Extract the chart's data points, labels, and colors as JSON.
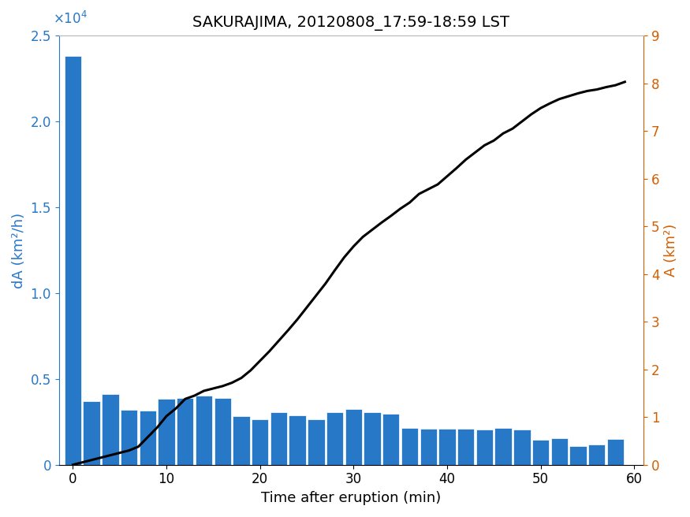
{
  "title": "SAKURAJIMA, 20120808_17:59-18:59 LST",
  "xlabel": "Time after eruption (min)",
  "ylabel_left": "dA (km²/h)",
  "ylabel_right": "A (km²)",
  "bar_color": "#2878c8",
  "line_color": "#000000",
  "left_axis_color": "#2878c8",
  "right_axis_color": "#d45f00",
  "xlim": [
    -1.5,
    61
  ],
  "ylim_left": [
    0,
    25000
  ],
  "ylim_right": [
    0,
    9
  ],
  "bar_centers": [
    0,
    2,
    4,
    6,
    8,
    10,
    12,
    14,
    16,
    18,
    20,
    22,
    24,
    26,
    28,
    30,
    32,
    34,
    36,
    38,
    40,
    42,
    44,
    46,
    48,
    50,
    52,
    54,
    56,
    58
  ],
  "bar_heights": [
    23800,
    3700,
    4100,
    3200,
    3150,
    3850,
    3900,
    4050,
    3900,
    2850,
    2650,
    3050,
    2900,
    2650,
    3050,
    3250,
    3050,
    2950,
    2150,
    2100,
    2100,
    2100,
    2050,
    2150,
    2050,
    1450,
    1550,
    1100,
    1200,
    1500
  ],
  "bar_width": 1.8,
  "line_x": [
    0,
    1,
    2,
    3,
    4,
    5,
    6,
    7,
    8,
    9,
    10,
    11,
    12,
    13,
    14,
    15,
    16,
    17,
    18,
    19,
    20,
    21,
    22,
    23,
    24,
    25,
    26,
    27,
    28,
    29,
    30,
    31,
    32,
    33,
    34,
    35,
    36,
    37,
    38,
    39,
    40,
    41,
    42,
    43,
    44,
    45,
    46,
    47,
    48,
    49,
    50,
    51,
    52,
    53,
    54,
    55,
    56,
    57,
    58,
    59
  ],
  "line_y": [
    0.0,
    0.05,
    0.1,
    0.15,
    0.2,
    0.25,
    0.3,
    0.38,
    0.58,
    0.78,
    1.02,
    1.18,
    1.38,
    1.45,
    1.55,
    1.6,
    1.65,
    1.72,
    1.82,
    1.98,
    2.18,
    2.38,
    2.6,
    2.82,
    3.05,
    3.3,
    3.55,
    3.8,
    4.08,
    4.35,
    4.58,
    4.78,
    4.93,
    5.08,
    5.22,
    5.37,
    5.5,
    5.68,
    5.78,
    5.88,
    6.05,
    6.22,
    6.4,
    6.55,
    6.7,
    6.8,
    6.95,
    7.05,
    7.2,
    7.35,
    7.48,
    7.58,
    7.67,
    7.73,
    7.79,
    7.84,
    7.87,
    7.92,
    7.96,
    8.03
  ],
  "xticks": [
    0,
    10,
    20,
    30,
    40,
    50,
    60
  ],
  "yticks_left": [
    0,
    0.5,
    1.0,
    1.5,
    2.0,
    2.5
  ],
  "yticks_right": [
    0,
    1,
    2,
    3,
    4,
    5,
    6,
    7,
    8,
    9
  ],
  "scale_factor": 10000,
  "title_fontsize": 14,
  "tick_fontsize": 12,
  "label_fontsize": 13
}
